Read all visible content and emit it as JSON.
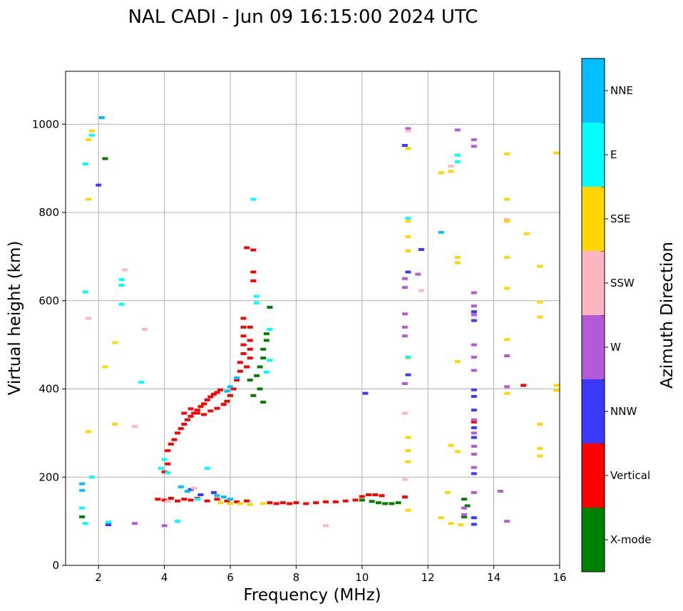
{
  "chart_data": {
    "type": "scatter",
    "title": "NAL CADI - Jun 09 16:15:00 2024 UTC",
    "xlabel": "Frequency (MHz)",
    "ylabel": "Virtual height (km)",
    "xlim": [
      1,
      16
    ],
    "ylim": [
      0,
      1120
    ],
    "xticks": [
      2,
      4,
      6,
      8,
      10,
      12,
      14,
      16
    ],
    "yticks": [
      0,
      200,
      400,
      600,
      800,
      1000
    ],
    "grid": true,
    "colorbar": {
      "label": "Azimuth Direction",
      "entries": [
        {
          "label": "X-mode",
          "color": "#008000"
        },
        {
          "label": "Vertical",
          "color": "#ff0000"
        },
        {
          "label": "NNW",
          "color": "#3a3aff"
        },
        {
          "label": "W",
          "color": "#b35ad6"
        },
        {
          "label": "SSW",
          "color": "#ffb6c1"
        },
        {
          "label": "SSE",
          "color": "#ffd700"
        },
        {
          "label": "E",
          "color": "#00ffff"
        },
        {
          "label": "NNE",
          "color": "#00bfff"
        }
      ]
    },
    "series": [
      {
        "name": "Vertical",
        "color": "#ff0000",
        "points": [
          [
            3.8,
            150
          ],
          [
            4.0,
            148
          ],
          [
            4.2,
            152
          ],
          [
            4.4,
            146
          ],
          [
            4.6,
            150
          ],
          [
            4.8,
            148
          ],
          [
            5.0,
            152
          ],
          [
            5.3,
            146
          ],
          [
            5.6,
            150
          ],
          [
            5.9,
            146
          ],
          [
            6.2,
            144
          ],
          [
            6.5,
            146
          ],
          [
            7.2,
            142
          ],
          [
            7.4,
            140
          ],
          [
            7.6,
            142
          ],
          [
            7.8,
            140
          ],
          [
            8.0,
            142
          ],
          [
            8.3,
            140
          ],
          [
            8.6,
            142
          ],
          [
            8.9,
            144
          ],
          [
            9.2,
            144
          ],
          [
            9.5,
            146
          ],
          [
            9.8,
            148
          ],
          [
            10.0,
            156
          ],
          [
            10.2,
            160
          ],
          [
            10.4,
            160
          ],
          [
            10.6,
            158
          ],
          [
            11.3,
            155
          ],
          [
            4.0,
            212
          ],
          [
            4.1,
            230
          ],
          [
            4.1,
            260
          ],
          [
            4.2,
            275
          ],
          [
            4.3,
            285
          ],
          [
            4.4,
            300
          ],
          [
            4.5,
            310
          ],
          [
            4.6,
            320
          ],
          [
            4.7,
            330
          ],
          [
            4.8,
            338
          ],
          [
            4.9,
            345
          ],
          [
            5.0,
            352
          ],
          [
            5.1,
            360
          ],
          [
            5.2,
            366
          ],
          [
            5.3,
            375
          ],
          [
            5.4,
            382
          ],
          [
            5.5,
            388
          ],
          [
            5.6,
            392
          ],
          [
            5.7,
            398
          ],
          [
            4.6,
            345
          ],
          [
            4.8,
            355
          ],
          [
            5.0,
            345
          ],
          [
            5.2,
            342
          ],
          [
            5.4,
            350
          ],
          [
            5.6,
            356
          ],
          [
            5.8,
            365
          ],
          [
            5.9,
            372
          ],
          [
            6.0,
            385
          ],
          [
            6.1,
            400
          ],
          [
            6.2,
            420
          ],
          [
            6.3,
            440
          ],
          [
            6.3,
            460
          ],
          [
            6.4,
            480
          ],
          [
            6.4,
            500
          ],
          [
            6.4,
            520
          ],
          [
            6.4,
            540
          ],
          [
            6.4,
            560
          ],
          [
            6.5,
            450
          ],
          [
            6.6,
            470
          ],
          [
            6.6,
            490
          ],
          [
            6.6,
            510
          ],
          [
            6.6,
            540
          ],
          [
            6.5,
            720
          ],
          [
            6.7,
            715
          ],
          [
            6.7,
            665
          ],
          [
            6.7,
            645
          ],
          [
            14.9,
            408
          ],
          [
            13.4,
            325
          ]
        ]
      },
      {
        "name": "X-mode",
        "color": "#008000",
        "points": [
          [
            6.6,
            420
          ],
          [
            6.7,
            385
          ],
          [
            6.8,
            430
          ],
          [
            6.9,
            450
          ],
          [
            7.0,
            470
          ],
          [
            7.0,
            490
          ],
          [
            7.1,
            510
          ],
          [
            7.1,
            525
          ],
          [
            7.2,
            585
          ],
          [
            6.9,
            400
          ],
          [
            7.0,
            370
          ],
          [
            10.0,
            148
          ],
          [
            10.3,
            145
          ],
          [
            10.5,
            142
          ],
          [
            10.7,
            140
          ],
          [
            10.9,
            140
          ],
          [
            11.1,
            142
          ],
          [
            13.1,
            150
          ],
          [
            13.2,
            135
          ],
          [
            13.1,
            110
          ],
          [
            2.2,
            922
          ],
          [
            1.5,
            110
          ]
        ]
      },
      {
        "name": "NNW",
        "color": "#3a3aff",
        "points": [
          [
            2.0,
            862
          ],
          [
            2.3,
            92
          ],
          [
            11.3,
            952
          ],
          [
            11.4,
            665
          ],
          [
            11.4,
            432
          ],
          [
            11.8,
            716
          ],
          [
            10.1,
            390
          ],
          [
            13.4,
            575
          ],
          [
            13.4,
            555
          ],
          [
            13.4,
            398
          ],
          [
            13.4,
            383
          ],
          [
            13.4,
            352
          ],
          [
            13.4,
            312
          ],
          [
            13.4,
            290
          ],
          [
            13.4,
            208
          ],
          [
            13.4,
            108
          ],
          [
            13.4,
            93
          ],
          [
            4.8,
            172
          ],
          [
            5.1,
            160
          ],
          [
            5.5,
            165
          ]
        ]
      },
      {
        "name": "W",
        "color": "#b35ad6",
        "points": [
          [
            11.3,
            650
          ],
          [
            11.3,
            630
          ],
          [
            11.3,
            570
          ],
          [
            11.3,
            540
          ],
          [
            11.3,
            520
          ],
          [
            11.3,
            412
          ],
          [
            11.4,
            990
          ],
          [
            11.7,
            660
          ],
          [
            12.9,
            987
          ],
          [
            13.4,
            965
          ],
          [
            13.4,
            950
          ],
          [
            13.4,
            618
          ],
          [
            13.4,
            588
          ],
          [
            13.4,
            568
          ],
          [
            13.4,
            500
          ],
          [
            13.4,
            472
          ],
          [
            13.4,
            442
          ],
          [
            13.4,
            330
          ],
          [
            13.4,
            300
          ],
          [
            13.4,
            270
          ],
          [
            13.4,
            252
          ],
          [
            13.4,
            222
          ],
          [
            13.4,
            165
          ],
          [
            13.1,
            130
          ],
          [
            13.1,
            115
          ],
          [
            14.4,
            782
          ],
          [
            14.4,
            475
          ],
          [
            14.4,
            405
          ],
          [
            14.4,
            100
          ],
          [
            14.2,
            168
          ],
          [
            4.0,
            90
          ],
          [
            3.1,
            95
          ]
        ]
      },
      {
        "name": "SSW",
        "color": "#ffb6c1",
        "points": [
          [
            2.8,
            670
          ],
          [
            3.4,
            535
          ],
          [
            3.1,
            315
          ],
          [
            1.7,
            560
          ],
          [
            11.4,
            985
          ],
          [
            11.3,
            345
          ],
          [
            11.3,
            195
          ],
          [
            11.8,
            623
          ],
          [
            12.7,
            905
          ],
          [
            14.4,
            784
          ],
          [
            8.9,
            90
          ],
          [
            4.1,
            145
          ],
          [
            4.9,
            175
          ]
        ]
      },
      {
        "name": "SSE",
        "color": "#ffd700",
        "points": [
          [
            1.7,
            965
          ],
          [
            1.7,
            830
          ],
          [
            1.7,
            303
          ],
          [
            1.8,
            985
          ],
          [
            2.2,
            450
          ],
          [
            2.5,
            505
          ],
          [
            2.5,
            320
          ],
          [
            5.7,
            142
          ],
          [
            6.0,
            140
          ],
          [
            6.3,
            140
          ],
          [
            6.6,
            138
          ],
          [
            7.0,
            140
          ],
          [
            11.4,
            945
          ],
          [
            11.4,
            780
          ],
          [
            11.4,
            745
          ],
          [
            11.4,
            713
          ],
          [
            11.4,
            290
          ],
          [
            11.4,
            260
          ],
          [
            11.4,
            235
          ],
          [
            11.4,
            125
          ],
          [
            11.4,
            470
          ],
          [
            12.4,
            890
          ],
          [
            12.7,
            893
          ],
          [
            12.9,
            698
          ],
          [
            12.9,
            686
          ],
          [
            12.9,
            462
          ],
          [
            12.9,
            258
          ],
          [
            12.7,
            272
          ],
          [
            12.6,
            165
          ],
          [
            12.7,
            95
          ],
          [
            13.0,
            92
          ],
          [
            12.4,
            108
          ],
          [
            14.4,
            933
          ],
          [
            14.4,
            830
          ],
          [
            14.4,
            780
          ],
          [
            14.4,
            698
          ],
          [
            14.4,
            628
          ],
          [
            14.4,
            512
          ],
          [
            14.4,
            390
          ],
          [
            15.0,
            752
          ],
          [
            15.4,
            678
          ],
          [
            15.4,
            597
          ],
          [
            15.4,
            563
          ],
          [
            15.4,
            320
          ],
          [
            15.4,
            265
          ],
          [
            15.4,
            248
          ],
          [
            15.9,
            935
          ],
          [
            15.9,
            408
          ],
          [
            15.9,
            397
          ]
        ]
      },
      {
        "name": "E",
        "color": "#00ffff",
        "points": [
          [
            1.6,
            620
          ],
          [
            1.6,
            910
          ],
          [
            1.8,
            975
          ],
          [
            1.8,
            200
          ],
          [
            2.7,
            648
          ],
          [
            2.7,
            635
          ],
          [
            2.7,
            592
          ],
          [
            3.3,
            415
          ],
          [
            3.9,
            220
          ],
          [
            4.0,
            240
          ],
          [
            4.1,
            210
          ],
          [
            5.3,
            220
          ],
          [
            6.7,
            830
          ],
          [
            6.8,
            610
          ],
          [
            6.8,
            595
          ],
          [
            7.2,
            535
          ],
          [
            7.2,
            465
          ],
          [
            7.1,
            438
          ],
          [
            11.4,
            787
          ],
          [
            11.4,
            472
          ],
          [
            12.9,
            930
          ],
          [
            12.9,
            915
          ],
          [
            2.3,
            98
          ],
          [
            4.4,
            100
          ],
          [
            5.0,
            150
          ],
          [
            1.5,
            130
          ],
          [
            1.6,
            95
          ]
        ]
      },
      {
        "name": "NNE",
        "color": "#00bfff",
        "points": [
          [
            2.1,
            1015
          ],
          [
            5.6,
            158
          ],
          [
            5.8,
            155
          ],
          [
            6.0,
            150
          ],
          [
            4.5,
            178
          ],
          [
            4.7,
            168
          ],
          [
            5.9,
            395
          ],
          [
            6.0,
            405
          ],
          [
            6.2,
            425
          ],
          [
            12.4,
            755
          ],
          [
            1.5,
            185
          ],
          [
            1.5,
            170
          ]
        ]
      }
    ]
  }
}
